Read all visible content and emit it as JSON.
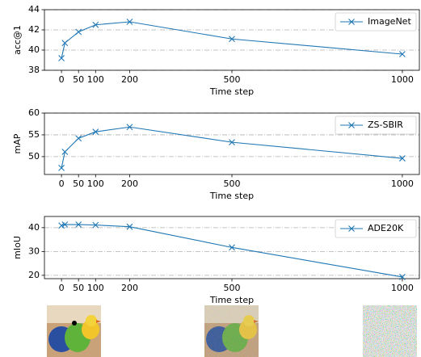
{
  "chart_data": [
    {
      "type": "line",
      "xlabel": "Time step",
      "ylabel": "acc@1",
      "x": [
        0,
        10,
        50,
        100,
        200,
        500,
        1000
      ],
      "series": [
        {
          "name": "ImageNet",
          "color": "#1f77b4",
          "values": [
            39.2,
            40.7,
            41.8,
            42.5,
            42.8,
            41.1,
            39.6
          ]
        }
      ],
      "xlim": [
        -50,
        1050
      ],
      "xticks": [
        0,
        50,
        100,
        200,
        500,
        1000
      ],
      "ylim": [
        38,
        44
      ],
      "yticks": [
        38,
        40,
        42,
        44
      ],
      "grid": true,
      "legend": "upper right",
      "marker": "x"
    },
    {
      "type": "line",
      "xlabel": "Time step",
      "ylabel": "mAP",
      "x": [
        0,
        10,
        50,
        100,
        200,
        500,
        1000
      ],
      "series": [
        {
          "name": "ZS-SBIR",
          "color": "#1f77b4",
          "values": [
            47.4,
            51.1,
            54.2,
            55.7,
            56.8,
            53.3,
            49.6
          ]
        }
      ],
      "xlim": [
        -50,
        1050
      ],
      "xticks": [
        0,
        50,
        100,
        200,
        500,
        1000
      ],
      "ylim": [
        45.9,
        60
      ],
      "yticks": [
        50,
        55,
        60
      ],
      "grid": true,
      "legend": "upper right",
      "marker": "x"
    },
    {
      "type": "line",
      "xlabel": "Time step",
      "ylabel": "mIoU",
      "x": [
        0,
        10,
        50,
        100,
        200,
        500,
        1000
      ],
      "series": [
        {
          "name": "ADE20K",
          "color": "#1f77b4",
          "values": [
            40.9,
            41.3,
            41.3,
            41.1,
            40.4,
            31.7,
            19.3
          ]
        }
      ],
      "xlim": [
        -50,
        1050
      ],
      "xticks": [
        0,
        50,
        100,
        200,
        500,
        1000
      ],
      "ylim": [
        18.6,
        44.7
      ],
      "yticks": [
        20,
        30,
        40
      ],
      "grid": true,
      "legend": "upper right",
      "marker": "x"
    }
  ]
}
